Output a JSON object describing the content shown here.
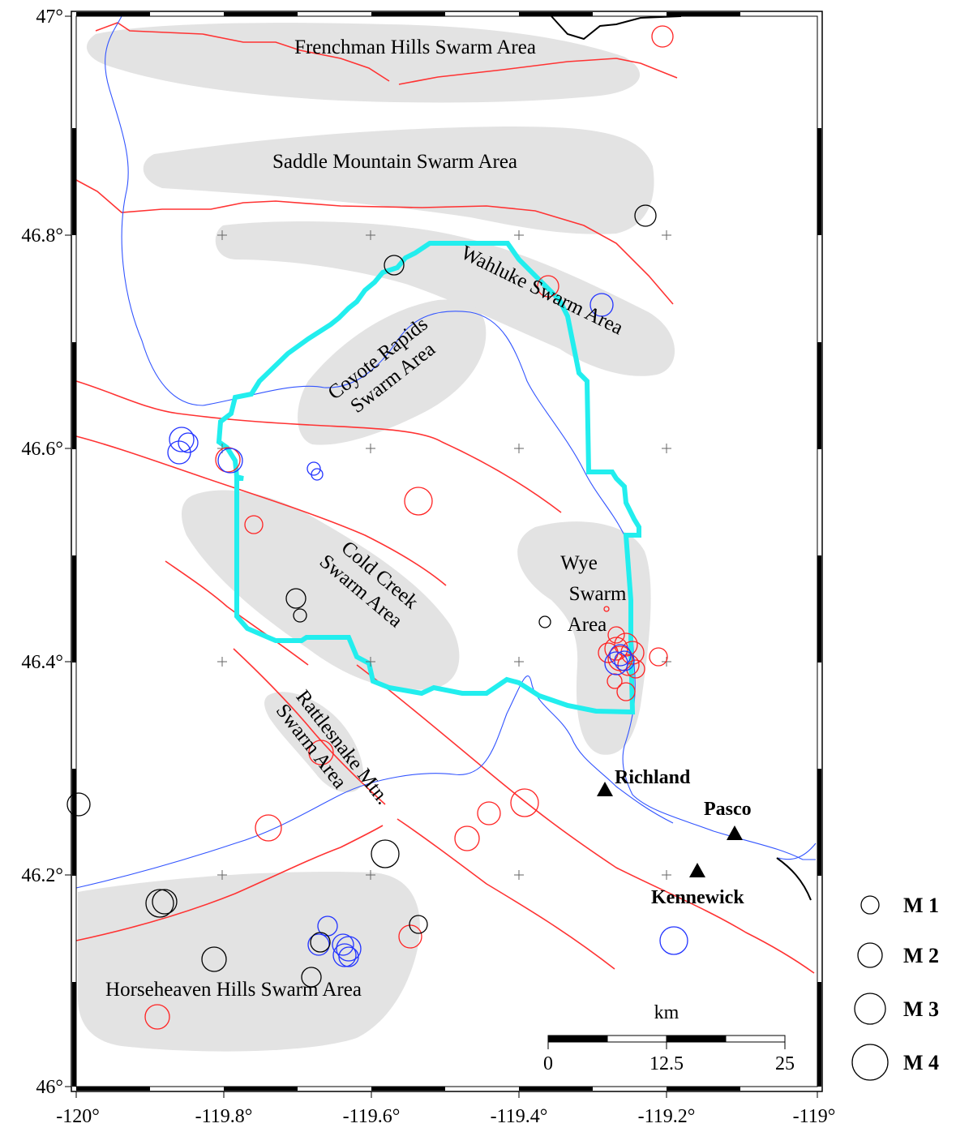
{
  "map": {
    "axis": {
      "lon_labels": [
        "-120°",
        "-119.8°",
        "-119.6°",
        "-119.4°",
        "-119.2°",
        "-119°"
      ],
      "lat_labels": [
        "47°",
        "46.8°",
        "46.6°",
        "46.4°",
        "46.2°",
        "46°"
      ]
    },
    "swarm_areas": [
      {
        "id": "frenchman",
        "label": "Frenchman Hills Swarm Area"
      },
      {
        "id": "saddle",
        "label": "Saddle Mountain Swarm Area"
      },
      {
        "id": "wahluke",
        "label": "Wahluke Swarm Area"
      },
      {
        "id": "coyote",
        "lines": [
          "Coyote Rapids",
          "Swarm Area"
        ]
      },
      {
        "id": "coldcreek",
        "lines": [
          "Cold Creek",
          "Swarm Area"
        ]
      },
      {
        "id": "wye",
        "lines": [
          "Wye",
          "Swarm",
          "Area"
        ]
      },
      {
        "id": "rattlesnake",
        "lines": [
          "Rattlesnake Mtn.",
          "Swarm Area"
        ]
      },
      {
        "id": "horseheaven",
        "label": "Horseheaven Hills Swarm Area"
      }
    ],
    "cities": [
      {
        "name": "Richland",
        "lon": -119.285,
        "lat": 46.28
      },
      {
        "name": "Pasco",
        "lon": -119.095,
        "lat": 46.24
      },
      {
        "name": "Kennewick",
        "lon": -119.14,
        "lat": 46.205
      }
    ],
    "scale_bar": {
      "unit": "km",
      "ticks": [
        "0",
        "12.5",
        "25"
      ]
    },
    "legend": [
      {
        "label": "M 1",
        "magnitude": 1
      },
      {
        "label": "M 2",
        "magnitude": 2
      },
      {
        "label": "M 3",
        "magnitude": 3
      },
      {
        "label": "M 4",
        "magnitude": 4
      }
    ],
    "colors": {
      "swarm_fill": "#e3e3e3",
      "fault": "#ff3333",
      "river": "#3355ff",
      "boundary": "#22eeee",
      "quake_red": "#ff2222",
      "quake_blue": "#2233ff",
      "quake_black": "#000000"
    }
  }
}
